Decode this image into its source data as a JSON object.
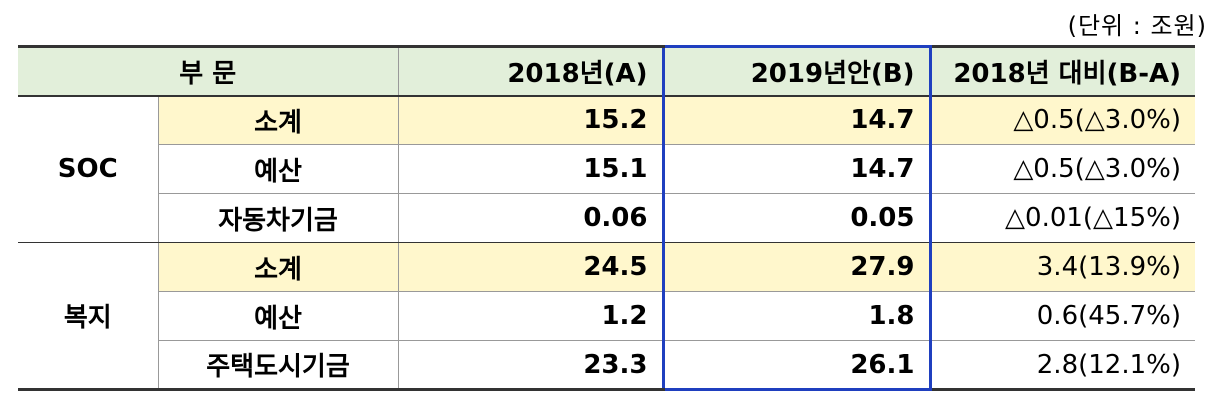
{
  "unit_note": "(단위 : 조원)",
  "table": {
    "header": [
      "부 문",
      "2018년(A)",
      "2019년안(B)",
      "2018년 대비(B-A)"
    ],
    "groups": [
      {
        "label": "SOC",
        "rows": [
          [
            "소계",
            "15.2",
            "14.7",
            "△0.5(△3.0%)"
          ],
          [
            "예산",
            "15.1",
            "14.7",
            "△0.5(△3.0%)"
          ],
          [
            "자동차기금",
            "0.06",
            "0.05",
            "△0.01(△15%)"
          ]
        ]
      },
      {
        "label": "복지",
        "rows": [
          [
            "소계",
            "24.5",
            "27.9",
            "3.4(13.9%)"
          ],
          [
            "예산",
            "1.2",
            "1.8",
            "0.6(45.7%)"
          ],
          [
            "주택도시기금",
            "23.3",
            "26.1",
            "2.8(12.1%)"
          ]
        ]
      }
    ]
  }
}
